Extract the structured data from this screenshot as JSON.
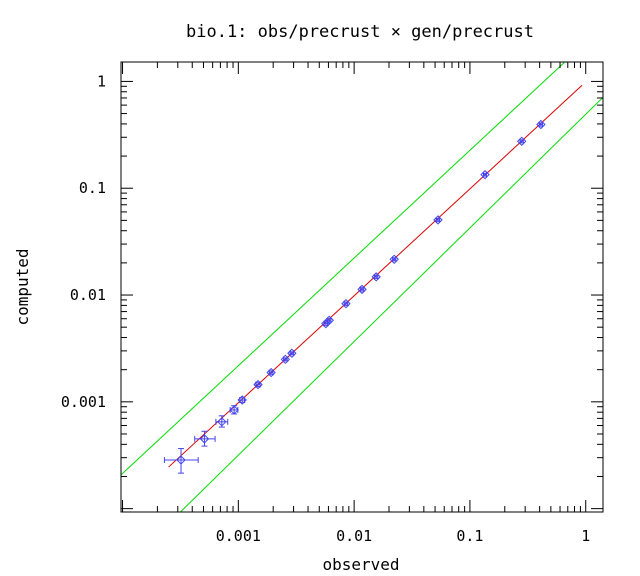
{
  "chart_data": {
    "type": "scatter",
    "title": "bio.1: obs/precrust × gen/precrust",
    "xlabel": "observed",
    "ylabel": "computed",
    "xscale": "log",
    "yscale": "log",
    "xlim": [
      9.7e-05,
      1.41
    ],
    "ylim": [
      9.3e-05,
      1.52
    ],
    "x_ticks": [
      {
        "value": 0.001,
        "label": "0.001"
      },
      {
        "value": 0.01,
        "label": "0.01"
      },
      {
        "value": 0.1,
        "label": "0.1"
      },
      {
        "value": 1,
        "label": "1"
      }
    ],
    "y_ticks": [
      {
        "value": 0.001,
        "label": "0.001"
      },
      {
        "value": 0.01,
        "label": "0.01"
      },
      {
        "value": 0.1,
        "label": "0.1"
      },
      {
        "value": 1,
        "label": "1"
      }
    ],
    "grid": false,
    "colors": {
      "points": "#4444ee",
      "fit_line": "#dd0000",
      "bound_lines": "#00dd00",
      "axes": "#000000"
    },
    "points": [
      {
        "x": 0.00032,
        "y": 0.000285,
        "xerr": [
          0.00023,
          0.00045
        ],
        "yerr": [
          0.000215,
          0.000365
        ]
      },
      {
        "x": 0.00051,
        "y": 0.00045,
        "xerr": [
          0.00042,
          0.00063
        ],
        "yerr": [
          0.000385,
          0.00053
        ]
      },
      {
        "x": 0.00072,
        "y": 0.00065,
        "xerr": [
          0.00064,
          0.00081
        ],
        "yerr": [
          0.00058,
          0.00074
        ]
      },
      {
        "x": 0.00092,
        "y": 0.00084,
        "xerr": [
          0.00085,
          0.00099
        ],
        "yerr": [
          0.00077,
          0.00092
        ]
      },
      {
        "x": 0.00108,
        "y": 0.00104,
        "xerr": [
          0.00103,
          0.00113
        ],
        "yerr": [
          0.00099,
          0.00109
        ]
      },
      {
        "x": 0.00148,
        "y": 0.00145,
        "xerr": [
          0.00142,
          0.00154
        ],
        "yerr": [
          0.00139,
          0.00151
        ]
      },
      {
        "x": 0.00192,
        "y": 0.00188,
        "xerr": [
          0.00185,
          0.00199
        ],
        "yerr": [
          0.00181,
          0.00195
        ]
      },
      {
        "x": 0.00255,
        "y": 0.0025,
        "xerr": [
          0.00246,
          0.00264
        ],
        "yerr": [
          0.00242,
          0.00258
        ]
      },
      {
        "x": 0.0029,
        "y": 0.00285,
        "xerr": [
          0.0028,
          0.003
        ],
        "yerr": [
          0.00276,
          0.00294
        ]
      },
      {
        "x": 0.0057,
        "y": 0.0054,
        "xerr": [
          0.0055,
          0.0059
        ],
        "yerr": [
          0.0052,
          0.0056
        ]
      },
      {
        "x": 0.0061,
        "y": 0.0058,
        "xerr": [
          0.0059,
          0.0063
        ],
        "yerr": [
          0.0056,
          0.006
        ]
      },
      {
        "x": 0.0085,
        "y": 0.0083,
        "xerr": [
          0.0082,
          0.0088
        ],
        "yerr": [
          0.008,
          0.0086
        ]
      },
      {
        "x": 0.0117,
        "y": 0.0113,
        "xerr": [
          0.0113,
          0.0121
        ],
        "yerr": [
          0.0109,
          0.0117
        ]
      },
      {
        "x": 0.0155,
        "y": 0.0148,
        "xerr": [
          0.015,
          0.016
        ],
        "yerr": [
          0.0143,
          0.0153
        ]
      },
      {
        "x": 0.0222,
        "y": 0.0216,
        "xerr": [
          0.0215,
          0.0229
        ],
        "yerr": [
          0.0209,
          0.0223
        ]
      },
      {
        "x": 0.053,
        "y": 0.0505,
        "xerr": [
          0.0513,
          0.0547
        ],
        "yerr": [
          0.0489,
          0.0521
        ]
      },
      {
        "x": 0.135,
        "y": 0.134,
        "xerr": [
          0.131,
          0.139
        ],
        "yerr": [
          0.13,
          0.138
        ]
      },
      {
        "x": 0.28,
        "y": 0.275,
        "xerr": [
          0.271,
          0.289
        ],
        "yerr": [
          0.266,
          0.284
        ]
      },
      {
        "x": 0.41,
        "y": 0.395,
        "xerr": [
          0.397,
          0.423
        ],
        "yerr": [
          0.382,
          0.408
        ]
      }
    ],
    "fit_line": [
      [
        0.00025,
        0.000245
      ],
      [
        0.93,
        0.92
      ]
    ],
    "upper_bound": [
      [
        9.7e-05,
        0.000207
      ],
      [
        0.66,
        1.52
      ]
    ],
    "lower_bound": [
      [
        0.000316,
        9.3e-05
      ],
      [
        1.41,
        0.71
      ]
    ]
  }
}
